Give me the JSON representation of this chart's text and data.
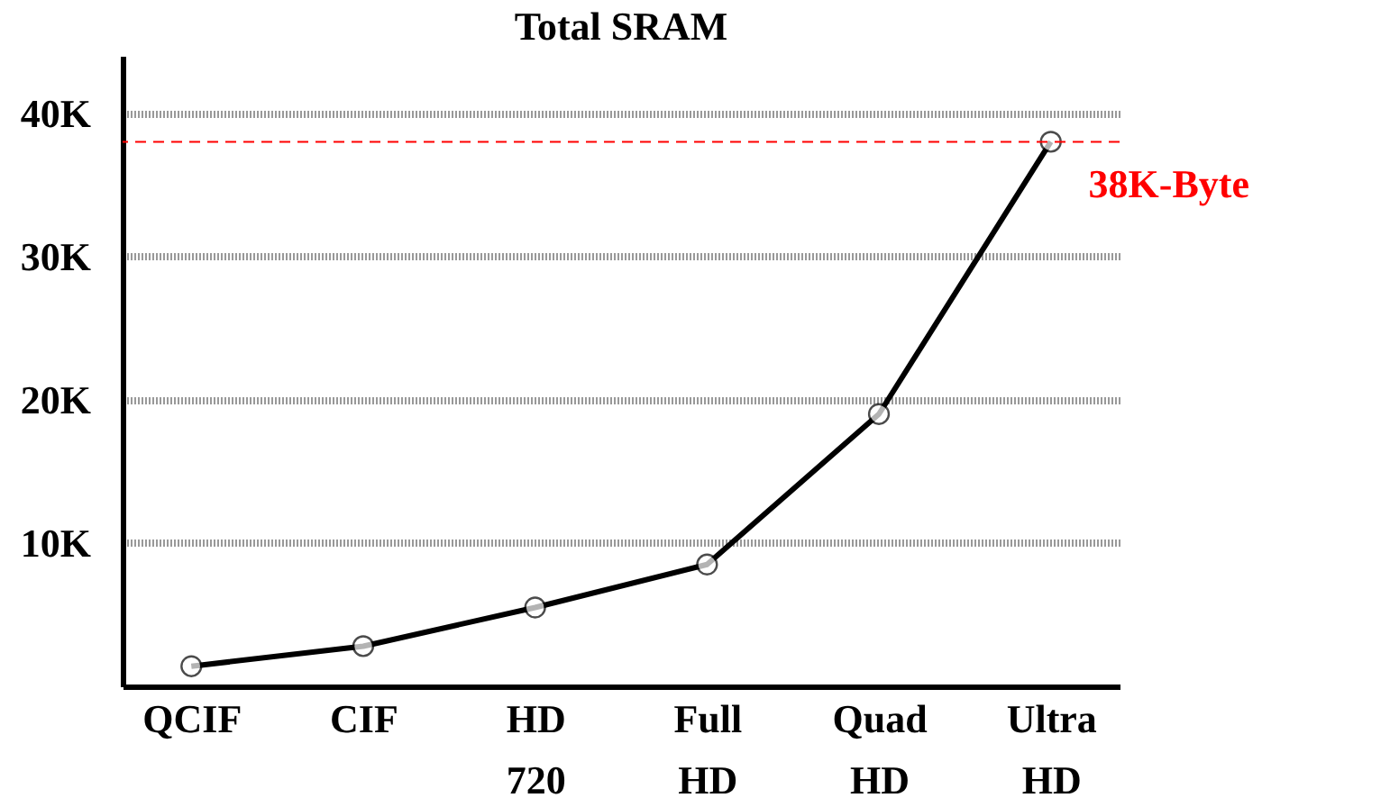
{
  "chart_data": {
    "type": "line",
    "title": "Total SRAM",
    "categories": [
      "QCIF",
      "CIF",
      "HD 720",
      "Full HD",
      "Quad HD",
      "Ultra HD"
    ],
    "series": [
      {
        "color": "#000000",
        "values": [
          1400,
          2800,
          5500,
          8500,
          19000,
          38000
        ]
      }
    ],
    "ylim": [
      0,
      44000
    ],
    "yticks": [
      {
        "value": 10000,
        "label": "10K"
      },
      {
        "value": 20000,
        "label": "20K"
      },
      {
        "value": 30000,
        "label": "30K"
      },
      {
        "value": 40000,
        "label": "40K"
      }
    ],
    "grid": "y",
    "marker": "circle",
    "line_style": "solid",
    "ref_lines": [
      {
        "axis": "y",
        "value": 38000,
        "label": "38K-Byte",
        "color": "#ff0000",
        "line_style": "dashed"
      }
    ]
  }
}
